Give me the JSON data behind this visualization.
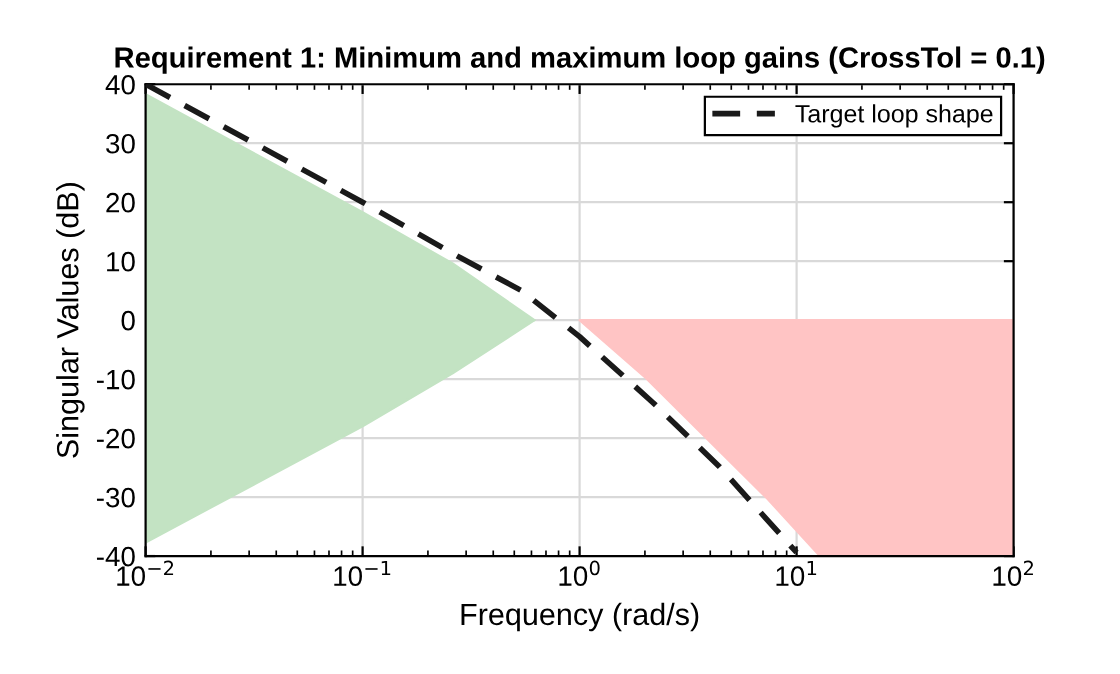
{
  "chart_data": {
    "type": "area",
    "title": "Requirement 1: Minimum and maximum loop gains (CrossTol = 0.1)",
    "xlabel": "Frequency (rad/s)",
    "ylabel": "Singular Values (dB)",
    "log": "x",
    "xlim": [
      0.01,
      100
    ],
    "xticks": [
      {
        "value": 0.01,
        "label": "10$^{−2}$"
      },
      {
        "value": 0.1,
        "label": "10$^{−1}$"
      },
      {
        "value": 1,
        "label": "10$^{0}$"
      },
      {
        "value": 10,
        "label": "10$^{1}$"
      },
      {
        "value": 100,
        "label": "10$^{2}$"
      }
    ],
    "ylim": [
      -40,
      40
    ],
    "yticks": [
      -40,
      -30,
      -20,
      -10,
      0,
      10,
      20,
      30,
      40
    ],
    "grid": true,
    "legend": "top right",
    "series": [
      {
        "color": "#c3e3c3",
        "x": [
          0.01,
          0.1,
          0.26,
          0.62
        ],
        "values": [
          38.3,
          18.3,
          9.6,
          0
        ]
      },
      {
        "color": "#c3e3c3",
        "x": [
          0.01,
          0.1,
          0.26,
          0.62
        ],
        "values": [
          -37.7,
          -18,
          -9,
          0
        ]
      },
      {
        "color": "#ffc4c4",
        "x": [
          1,
          2.03,
          3.84,
          7.3,
          12.8,
          100
        ],
        "values": [
          0,
          -9.9,
          -20,
          -30.2,
          -40,
          -40
        ]
      },
      {
        "type": "line",
        "name": "Target loop shape",
        "color": "#1a1a1a",
        "line_style": "dashed",
        "x": [
          0.01,
          0.1,
          0.26,
          0.54,
          1,
          2.18,
          4.4,
          10
        ],
        "values": [
          40,
          20,
          11.3,
          5,
          -2.8,
          -14,
          -24.8,
          -39.4
        ]
      }
    ]
  }
}
